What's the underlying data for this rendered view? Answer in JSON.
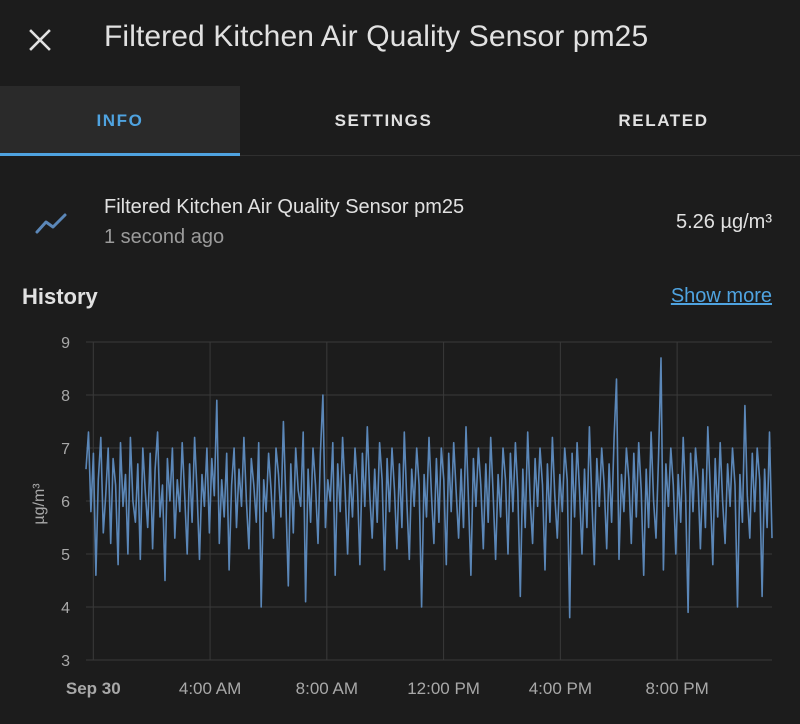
{
  "dialog": {
    "title": "Filtered Kitchen Air Quality Sensor pm25",
    "close_icon": "close-icon"
  },
  "tabs": [
    {
      "label": "INFO",
      "active": true
    },
    {
      "label": "SETTINGS",
      "active": false
    },
    {
      "label": "RELATED",
      "active": false
    }
  ],
  "entity": {
    "icon": "chart-line-icon",
    "name": "Filtered Kitchen Air Quality Sensor pm25",
    "last_changed": "1 second ago",
    "state": "5.26 µg/m³"
  },
  "history": {
    "title": "History",
    "show_more": "Show more"
  },
  "colors": {
    "accent": "#4fa3e0",
    "series": "#5b87b8",
    "background": "#1c1c1c"
  },
  "chart_data": {
    "type": "line",
    "ylabel": "µg/m³",
    "ylim": [
      3,
      9
    ],
    "yticks": [
      "3",
      "4",
      "5",
      "6",
      "7",
      "8",
      "9"
    ],
    "xticks": [
      {
        "label": "Sep 30",
        "bold": true
      },
      {
        "label": "4:00 AM",
        "bold": false
      },
      {
        "label": "8:00 AM",
        "bold": false
      },
      {
        "label": "12:00 PM",
        "bold": false
      },
      {
        "label": "4:00 PM",
        "bold": false
      },
      {
        "label": "8:00 PM",
        "bold": false
      }
    ],
    "x_range_hours": [
      -0.25,
      23.25
    ],
    "series": [
      {
        "values": [
          6.6,
          7.3,
          5.8,
          6.9,
          4.6,
          6.4,
          7.2,
          5.4,
          6.1,
          7.0,
          5.2,
          6.8,
          6.3,
          4.8,
          7.1,
          5.9,
          6.5,
          5.0,
          7.2,
          6.0,
          5.6,
          6.7,
          4.9,
          7.0,
          6.2,
          5.5,
          6.9,
          5.1,
          6.6,
          7.3,
          5.7,
          6.3,
          4.5,
          6.8,
          6.0,
          7.0,
          5.3,
          6.4,
          5.8,
          7.1,
          6.1,
          5.0,
          6.7,
          5.6,
          7.2,
          6.2,
          4.9,
          6.5,
          5.9,
          7.0,
          5.4,
          6.8,
          6.1,
          7.9,
          5.2,
          6.4,
          5.7,
          6.9,
          4.7,
          6.3,
          7.0,
          5.5,
          6.6,
          5.9,
          7.2,
          6.0,
          5.1,
          6.8,
          6.3,
          5.6,
          7.1,
          4.0,
          6.4,
          5.8,
          6.9,
          6.2,
          5.3,
          7.0,
          6.5,
          5.7,
          7.5,
          6.0,
          4.4,
          6.7,
          5.4,
          7.0,
          6.2,
          5.9,
          7.3,
          4.1,
          6.6,
          5.6,
          7.0,
          6.3,
          5.2,
          6.9,
          8.0,
          5.5,
          6.4,
          6.0,
          7.1,
          4.6,
          6.7,
          5.8,
          7.2,
          6.2,
          5.0,
          6.5,
          5.7,
          7.0,
          6.3,
          4.8,
          6.9,
          5.9,
          7.4,
          6.1,
          5.3,
          6.6,
          5.6,
          7.1,
          6.4,
          4.7,
          6.8,
          5.8,
          7.0,
          6.2,
          5.1,
          6.7,
          5.5,
          7.3,
          6.0,
          4.9,
          6.6,
          5.9,
          7.0,
          6.3,
          4.0,
          6.5,
          5.7,
          7.2,
          6.1,
          5.2,
          6.8,
          5.6,
          7.0,
          6.4,
          4.8,
          6.9,
          5.8,
          7.1,
          6.2,
          5.3,
          6.6,
          5.5,
          7.4,
          6.0,
          4.6,
          6.8,
          5.9,
          7.0,
          6.3,
          5.1,
          6.7,
          5.6,
          7.2,
          6.1,
          4.9,
          6.5,
          5.7,
          7.0,
          6.4,
          5.0,
          6.9,
          5.8,
          7.1,
          6.2,
          4.2,
          6.6,
          5.5,
          7.3,
          6.0,
          5.2,
          6.8,
          5.9,
          7.0,
          6.3,
          4.7,
          6.7,
          5.6,
          7.2,
          6.1,
          5.3,
          6.5,
          5.8,
          7.0,
          6.4,
          3.8,
          6.9,
          5.7,
          7.1,
          6.2,
          5.0,
          6.6,
          5.5,
          7.4,
          6.0,
          4.8,
          6.8,
          5.9,
          7.0,
          6.3,
          5.1,
          6.7,
          5.6,
          7.2,
          8.3,
          4.9,
          6.5,
          5.8,
          7.0,
          6.4,
          5.2,
          6.9,
          5.7,
          7.1,
          6.2,
          4.6,
          6.6,
          5.5,
          7.3,
          6.0,
          5.3,
          6.8,
          8.7,
          4.7,
          6.7,
          5.9,
          7.0,
          6.3,
          5.0,
          6.5,
          5.6,
          7.2,
          6.1,
          3.9,
          6.9,
          5.8,
          7.0,
          6.4,
          5.1,
          6.6,
          5.5,
          7.4,
          6.2,
          4.8,
          6.8,
          5.7,
          7.1,
          6.0,
          5.2,
          6.7,
          5.9,
          7.0,
          6.3,
          4.0,
          6.5,
          5.6,
          7.8,
          6.1,
          5.3,
          6.9,
          5.8,
          7.0,
          6.4,
          4.2,
          6.6,
          5.5,
          7.3,
          5.3
        ]
      }
    ]
  }
}
